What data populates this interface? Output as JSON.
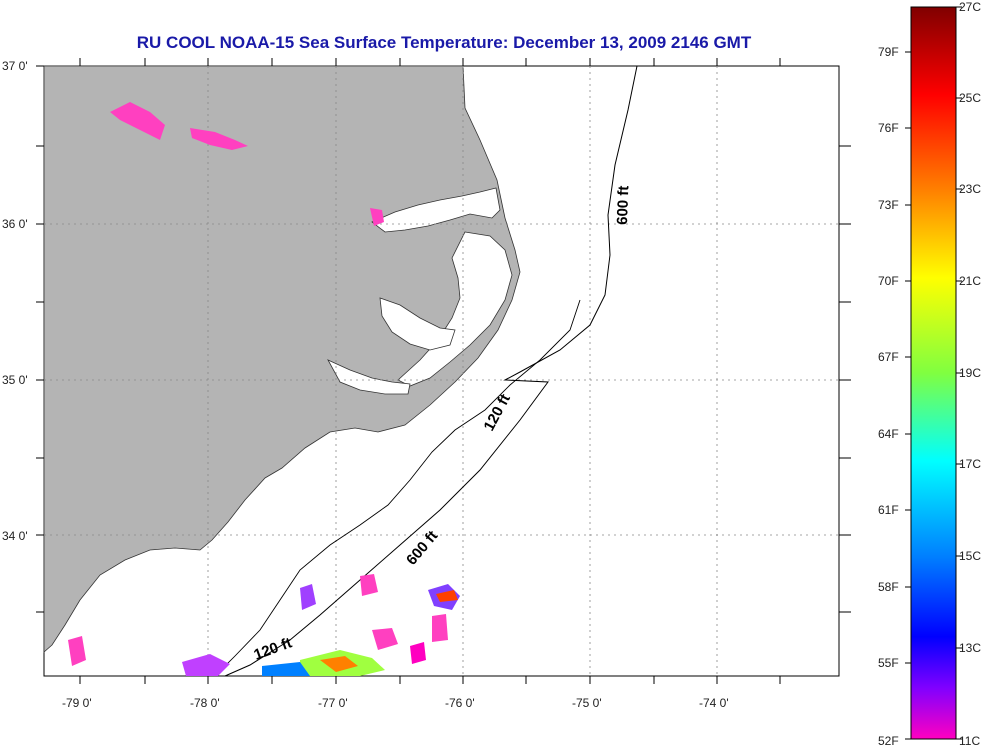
{
  "title": "RU COOL  NOAA-15  Sea Surface Temperature:  December 13, 2009 2146 GMT",
  "map": {
    "lat_labels": [
      "37 0'",
      "36 0'",
      "35 0'",
      "34 0'"
    ],
    "lon_labels": [
      "-79 0'",
      "-78 0'",
      "-77 0'",
      "-76 0'",
      "-75 0'",
      "-74 0'"
    ],
    "contour_labels": {
      "c600_north": "600 ft",
      "c120_mid": "120 ft",
      "c600_south": "600 ft",
      "c120_south": "120 ft"
    },
    "colors": {
      "land": "#b4b4b4",
      "ocean": "#ffffff",
      "grid": "#888888",
      "contour": "#000000"
    }
  },
  "colorbar": {
    "celsius_labels": [
      "27C",
      "25C",
      "23C",
      "21C",
      "19C",
      "17C",
      "15C",
      "13C",
      "11C"
    ],
    "fahrenheit_labels": [
      "79F",
      "76F",
      "73F",
      "70F",
      "67F",
      "64F",
      "61F",
      "58F",
      "55F",
      "52F"
    ],
    "gradient_colors": [
      "#800000",
      "#ff0000",
      "#ff8000",
      "#ffff00",
      "#80ff40",
      "#00ffff",
      "#0080ff",
      "#0000ff",
      "#8000ff",
      "#ff00c0"
    ]
  }
}
